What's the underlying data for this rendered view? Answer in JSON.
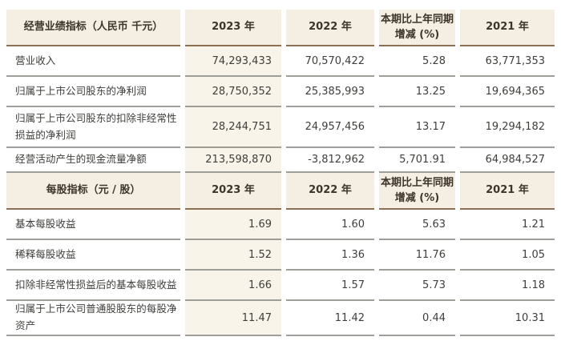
{
  "colors": {
    "page_bg": "#ffffff",
    "header_bg": "#f4efe2",
    "accent_column_bg": "#f8f4e9",
    "header_border": "#8b7054",
    "row_border": "#9f9d98",
    "header_text": "#3e352a",
    "body_text": "#3f3e3b"
  },
  "table": {
    "sections": [
      {
        "header": {
          "label": "经营业绩指标（人民币 千元）",
          "columns": [
            "2023 年",
            "2022 年",
            "本期比上年同期增减 (%)",
            "2021 年"
          ]
        },
        "rows": [
          {
            "label": "营业收入",
            "values": [
              "74,293,433",
              "70,570,422",
              "5.28",
              "63,771,353"
            ]
          },
          {
            "label": "归属于上市公司股东的净利润",
            "values": [
              "28,750,352",
              "25,385,993",
              "13.25",
              "19,694,365"
            ]
          },
          {
            "label": "归属于上市公司股东的扣除非经常性损益的净利润",
            "values": [
              "28,244,751",
              "24,957,456",
              "13.17",
              "19,294,182"
            ]
          },
          {
            "label": "经营活动产生的现金流量净额",
            "values": [
              "213,598,870",
              "-3,812,962",
              "5,701.91",
              "64,984,527"
            ]
          }
        ]
      },
      {
        "header": {
          "label": "每股指标（元 / 股）",
          "columns": [
            "2023 年",
            "2022 年",
            "本期比上年同期增减 (%)",
            "2021 年"
          ]
        },
        "rows": [
          {
            "label": "基本每股收益",
            "values": [
              "1.69",
              "1.60",
              "5.63",
              "1.21"
            ]
          },
          {
            "label": "稀释每股收益",
            "values": [
              "1.52",
              "1.36",
              "11.76",
              "1.05"
            ]
          },
          {
            "label": "扣除非经常性损益后的基本每股收益",
            "values": [
              "1.66",
              "1.57",
              "5.73",
              "1.18"
            ]
          },
          {
            "label": "归属于上市公司普通股股东的每股净资产",
            "values": [
              "11.47",
              "11.42",
              "0.44",
              "10.31"
            ]
          }
        ]
      }
    ]
  }
}
